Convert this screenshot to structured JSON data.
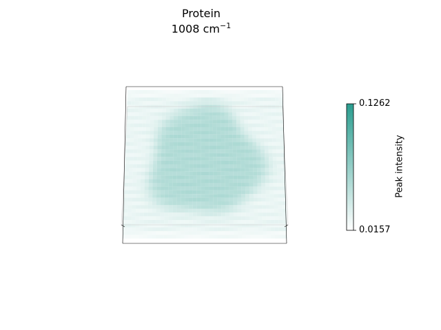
{
  "chart_data": {
    "type": "heatmap",
    "title_line1": "Protein",
    "title_line2_value": "1008 cm",
    "title_line2_exponent": "−1",
    "colorbar": {
      "label": "Peak intensity",
      "min": 0.0157,
      "max": 0.1262,
      "min_label": "0.0157",
      "max_label": "0.1262",
      "color_low": "#ffffff",
      "color_high": "#2a9d8f"
    },
    "grid": {
      "columns": 40,
      "rows": 40,
      "background_intensity": 0.03,
      "blob_intensity": 0.07
    }
  }
}
